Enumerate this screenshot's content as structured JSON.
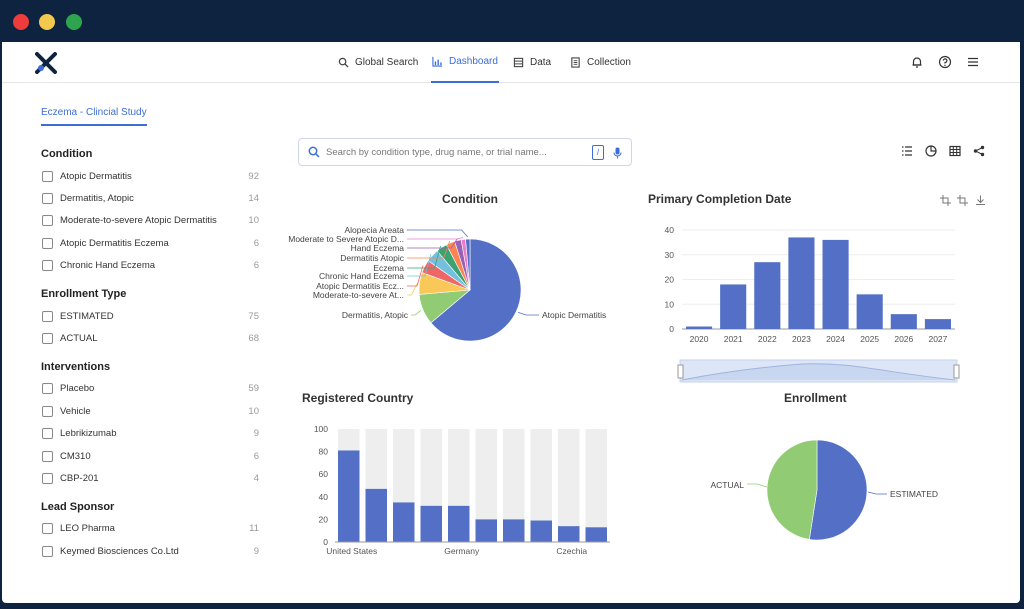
{
  "nav": {
    "items": [
      {
        "label": "Global Search",
        "icon": "search-icon"
      },
      {
        "label": "Dashboard",
        "icon": "chart-icon"
      },
      {
        "label": "Data",
        "icon": "table-icon"
      },
      {
        "label": "Collection",
        "icon": "collection-icon"
      }
    ],
    "right_icons": [
      "bell-icon",
      "help-icon",
      "menu-icon"
    ]
  },
  "sidebar": {
    "tab": "Eczema - Clincial Study",
    "sections": [
      {
        "title": "Condition",
        "options": [
          {
            "label": "Atopic Dermatitis",
            "count": "92"
          },
          {
            "label": "Dermatitis, Atopic",
            "count": "14"
          },
          {
            "label": "Moderate-to-severe Atopic Dermatitis",
            "count": "10"
          },
          {
            "label": "Atopic Dermatitis Eczema",
            "count": "6"
          },
          {
            "label": "Chronic Hand Eczema",
            "count": "6"
          }
        ]
      },
      {
        "title": "Enrollment Type",
        "options": [
          {
            "label": "ESTIMATED",
            "count": "75"
          },
          {
            "label": "ACTUAL",
            "count": "68"
          }
        ]
      },
      {
        "title": "Interventions",
        "options": [
          {
            "label": "Placebo",
            "count": "59"
          },
          {
            "label": "Vehicle",
            "count": "10"
          },
          {
            "label": "Lebrikizumab",
            "count": "9"
          },
          {
            "label": "CM310",
            "count": "6"
          },
          {
            "label": "CBP-201",
            "count": "4"
          }
        ]
      },
      {
        "title": "Lead Sponsor",
        "options": [
          {
            "label": "LEO Pharma",
            "count": "11"
          },
          {
            "label": "Keymed Biosciences Co.Ltd",
            "count": "9"
          }
        ]
      }
    ]
  },
  "search": {
    "placeholder": "Search by condition type, drug name, or trial name...",
    "shortcut": "/"
  },
  "toolbar_icons": [
    "list-icon",
    "pie-chart-icon",
    "grid-icon",
    "share-icon"
  ],
  "colors": {
    "accent": "#3d6ed8",
    "bar": "#5470c6",
    "green": "#91cc75"
  },
  "chart_data": [
    {
      "type": "pie",
      "title": "Condition",
      "slices": [
        {
          "label": "Atopic Dermatitis",
          "value": 92,
          "color": "#5470c6"
        },
        {
          "label": "Dermatitis, Atopic",
          "value": 14,
          "color": "#91cc75"
        },
        {
          "label": "Moderate-to-severe At...",
          "value": 10,
          "color": "#fac858"
        },
        {
          "label": "Atopic Dermatitis Ecz...",
          "value": 6,
          "color": "#ee6666"
        },
        {
          "label": "Chronic Hand Eczema",
          "value": 6,
          "color": "#73c0de"
        },
        {
          "label": "Eczema",
          "value": 5,
          "color": "#3ba272"
        },
        {
          "label": "Dermatitis Atopic",
          "value": 4,
          "color": "#fc8452"
        },
        {
          "label": "Hand Eczema",
          "value": 3,
          "color": "#9a60b4"
        },
        {
          "label": "Moderate to Severe Atopic D...",
          "value": 2,
          "color": "#ea7ccc"
        },
        {
          "label": "Alopecia Areata",
          "value": 2,
          "color": "#5470c6"
        }
      ]
    },
    {
      "type": "bar",
      "title": "Primary Completion Date",
      "categories": [
        "2020",
        "2021",
        "2022",
        "2023",
        "2024",
        "2025",
        "2026",
        "2027"
      ],
      "values": [
        1,
        18,
        27,
        37,
        36,
        14,
        6,
        4
      ],
      "ylim": [
        0,
        40
      ],
      "yticks": [
        "0",
        "10",
        "20",
        "30",
        "40"
      ]
    },
    {
      "type": "bar",
      "title": "Registered Country",
      "categories": [
        "United States",
        "",
        "",
        "",
        "Germany",
        "",
        "",
        "",
        "Czechia",
        ""
      ],
      "values": [
        81,
        47,
        35,
        32,
        32,
        20,
        20,
        19,
        14,
        13
      ],
      "ylim": [
        0,
        100
      ],
      "yticks": [
        "0",
        "20",
        "40",
        "60",
        "80",
        "100"
      ]
    },
    {
      "type": "pie",
      "title": "Enrollment",
      "slices": [
        {
          "label": "ESTIMATED",
          "value": 75,
          "color": "#5470c6"
        },
        {
          "label": "ACTUAL",
          "value": 68,
          "color": "#91cc75"
        }
      ]
    }
  ]
}
